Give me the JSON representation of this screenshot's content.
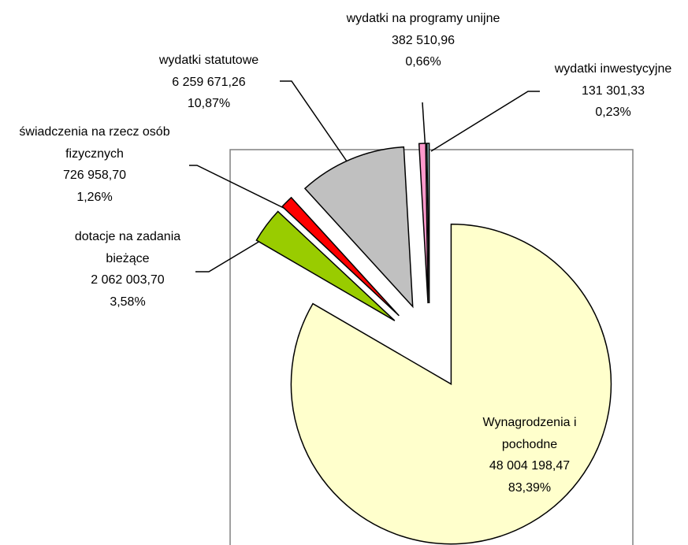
{
  "chart_data": {
    "type": "pie",
    "categories": [
      "Wynagrodzenia i pochodne",
      "dotacje na zadania bieżące",
      "świadczenia na rzecz osób fizycznych",
      "wydatki statutowe",
      "wydatki na programy unijne",
      "wydatki inwestycyjne"
    ],
    "values": [
      48004198.47,
      2062003.7,
      726958.7,
      6259671.26,
      382510.96,
      131301.33
    ],
    "value_labels": [
      "48 004 198,47",
      "2 062 003,70",
      "726 958,70",
      "6 259 671,26",
      "382 510,96",
      "131 301,33"
    ],
    "percentages": [
      83.39,
      3.58,
      1.26,
      10.87,
      0.66,
      0.23
    ],
    "percentage_labels": [
      "83,39%",
      "3,58%",
      "1,26%",
      "10,87%",
      "0,66%",
      "0,23%"
    ],
    "colors": [
      "#ffffcc",
      "#99cc00",
      "#ff0000",
      "#c0c0c0",
      "#ff99cc",
      "#99cccc"
    ]
  }
}
